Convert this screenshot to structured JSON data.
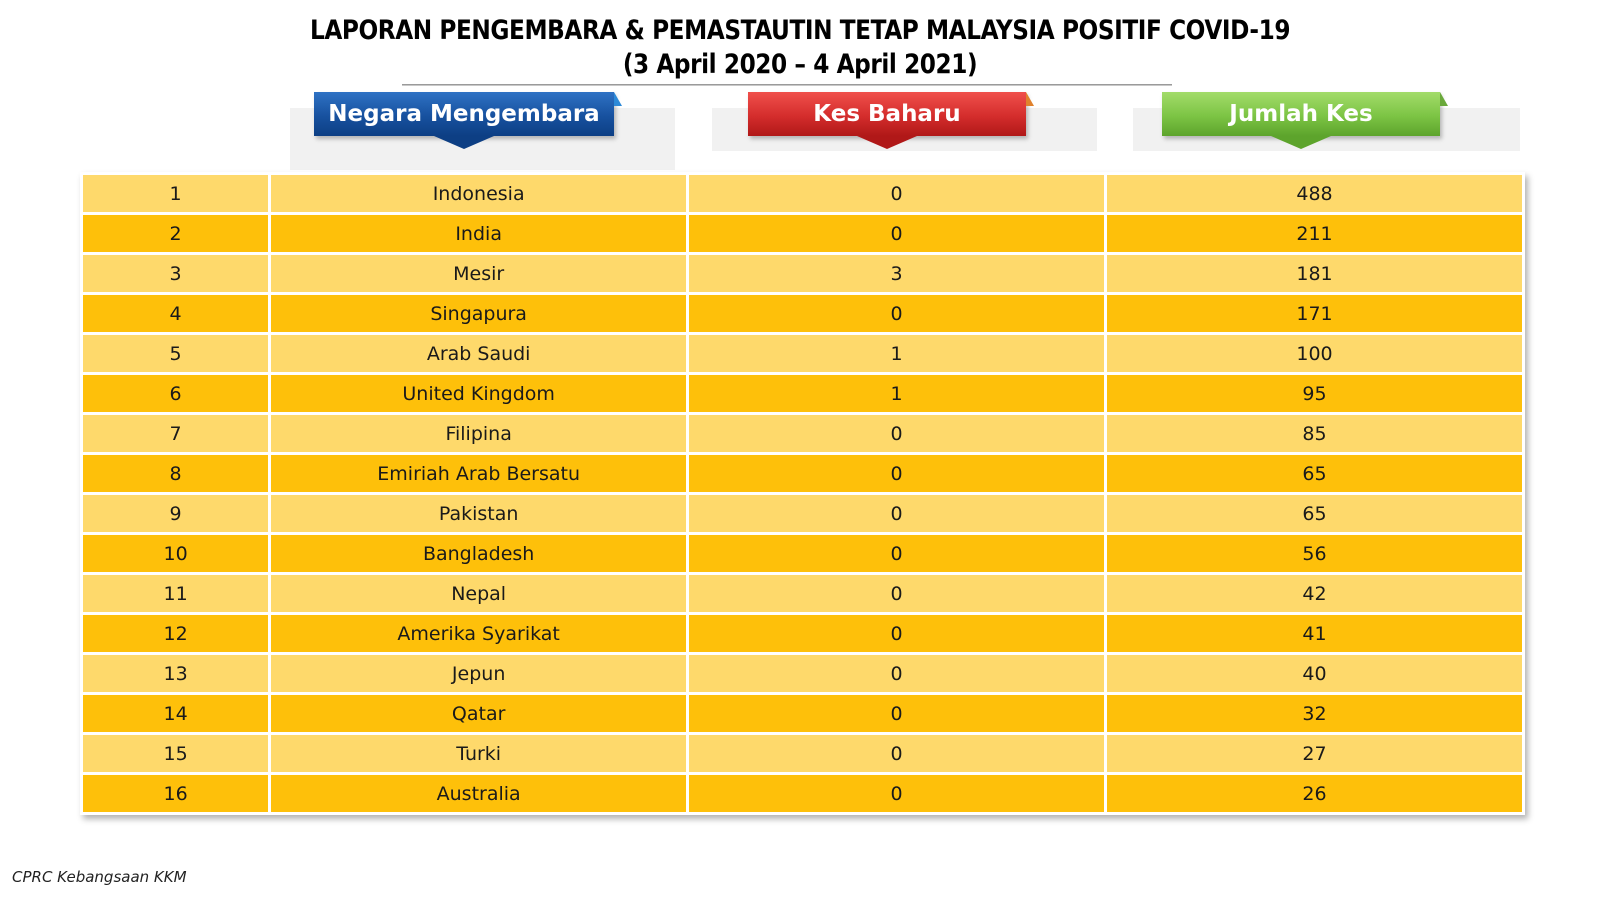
{
  "title": {
    "line1": "LAPORAN PENGEMBARA & PEMASTAUTIN TETAP MALAYSIA POSITIF COVID-19",
    "line2": "(3 April 2020 – 4 April 2021)"
  },
  "headers": {
    "country": "Negara Mengembara",
    "new_cases": "Kes Baharu",
    "total_cases": "Jumlah Kes"
  },
  "colors": {
    "header_country": "#17519f",
    "header_new_cases": "#d42d2c",
    "header_total_cases": "#7cc444",
    "row_light": "#fed96b",
    "row_dark": "#fec00a"
  },
  "rows": [
    {
      "no": "1",
      "country": "Indonesia",
      "new": "0",
      "total": "488"
    },
    {
      "no": "2",
      "country": "India",
      "new": "0",
      "total": "211"
    },
    {
      "no": "3",
      "country": "Mesir",
      "new": "3",
      "total": "181"
    },
    {
      "no": "4",
      "country": "Singapura",
      "new": "0",
      "total": "171"
    },
    {
      "no": "5",
      "country": "Arab Saudi",
      "new": "1",
      "total": "100"
    },
    {
      "no": "6",
      "country": "United Kingdom",
      "new": "1",
      "total": "95"
    },
    {
      "no": "7",
      "country": "Filipina",
      "new": "0",
      "total": "85"
    },
    {
      "no": "8",
      "country": "Emiriah Arab Bersatu",
      "new": "0",
      "total": "65"
    },
    {
      "no": "9",
      "country": "Pakistan",
      "new": "0",
      "total": "65"
    },
    {
      "no": "10",
      "country": "Bangladesh",
      "new": "0",
      "total": "56"
    },
    {
      "no": "11",
      "country": "Nepal",
      "new": "0",
      "total": "42"
    },
    {
      "no": "12",
      "country": "Amerika Syarikat",
      "new": "0",
      "total": "41"
    },
    {
      "no": "13",
      "country": "Jepun",
      "new": "0",
      "total": "40"
    },
    {
      "no": "14",
      "country": "Qatar",
      "new": "0",
      "total": "32"
    },
    {
      "no": "15",
      "country": "Turki",
      "new": "0",
      "total": "27"
    },
    {
      "no": "16",
      "country": "Australia",
      "new": "0",
      "total": "26"
    }
  ],
  "footer": "CPRC Kebangsaan KKM"
}
